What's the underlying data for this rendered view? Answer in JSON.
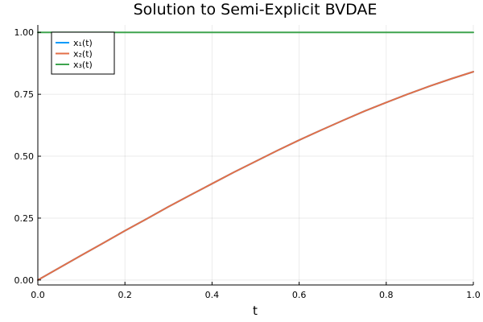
{
  "chart_data": {
    "type": "line",
    "title": "Solution to Semi-Explicit BVDAE",
    "xlabel": "t",
    "ylabel": "",
    "xlim": [
      0,
      1
    ],
    "ylim": [
      -0.02,
      1.03
    ],
    "xticks": [
      0.0,
      0.2,
      0.4,
      0.6,
      0.8,
      1.0
    ],
    "xtick_labels": [
      "0.0",
      "0.2",
      "0.4",
      "0.6",
      "0.8",
      "1.0"
    ],
    "yticks": [
      0.0,
      0.25,
      0.5,
      0.75,
      1.0
    ],
    "ytick_labels": [
      "0.00",
      "0.25",
      "0.50",
      "0.75",
      "1.00"
    ],
    "grid": true,
    "legend_position": "top-left",
    "x": [
      0.0,
      0.05,
      0.1,
      0.15,
      0.2,
      0.25,
      0.3,
      0.35,
      0.4,
      0.45,
      0.5,
      0.55,
      0.6,
      0.65,
      0.7,
      0.75,
      0.8,
      0.85,
      0.9,
      0.95,
      1.0
    ],
    "series": [
      {
        "name": "x₁(t)",
        "color": "#009AFA",
        "values": [
          0.0,
          0.05,
          0.1,
          0.149,
          0.199,
          0.247,
          0.296,
          0.343,
          0.389,
          0.435,
          0.479,
          0.523,
          0.565,
          0.605,
          0.644,
          0.682,
          0.717,
          0.751,
          0.783,
          0.813,
          0.841
        ]
      },
      {
        "name": "x₂(t)",
        "color": "#E36F47",
        "values": [
          0.0,
          0.05,
          0.1,
          0.149,
          0.199,
          0.247,
          0.296,
          0.343,
          0.389,
          0.435,
          0.479,
          0.523,
          0.565,
          0.605,
          0.644,
          0.682,
          0.717,
          0.751,
          0.783,
          0.813,
          0.841
        ]
      },
      {
        "name": "x₃(t)",
        "color": "#3EA44E",
        "values": [
          1.0,
          1.0,
          1.0,
          1.0,
          1.0,
          1.0,
          1.0,
          1.0,
          1.0,
          1.0,
          1.0,
          1.0,
          1.0,
          1.0,
          1.0,
          1.0,
          1.0,
          1.0,
          1.0,
          1.0,
          1.0
        ]
      }
    ]
  }
}
